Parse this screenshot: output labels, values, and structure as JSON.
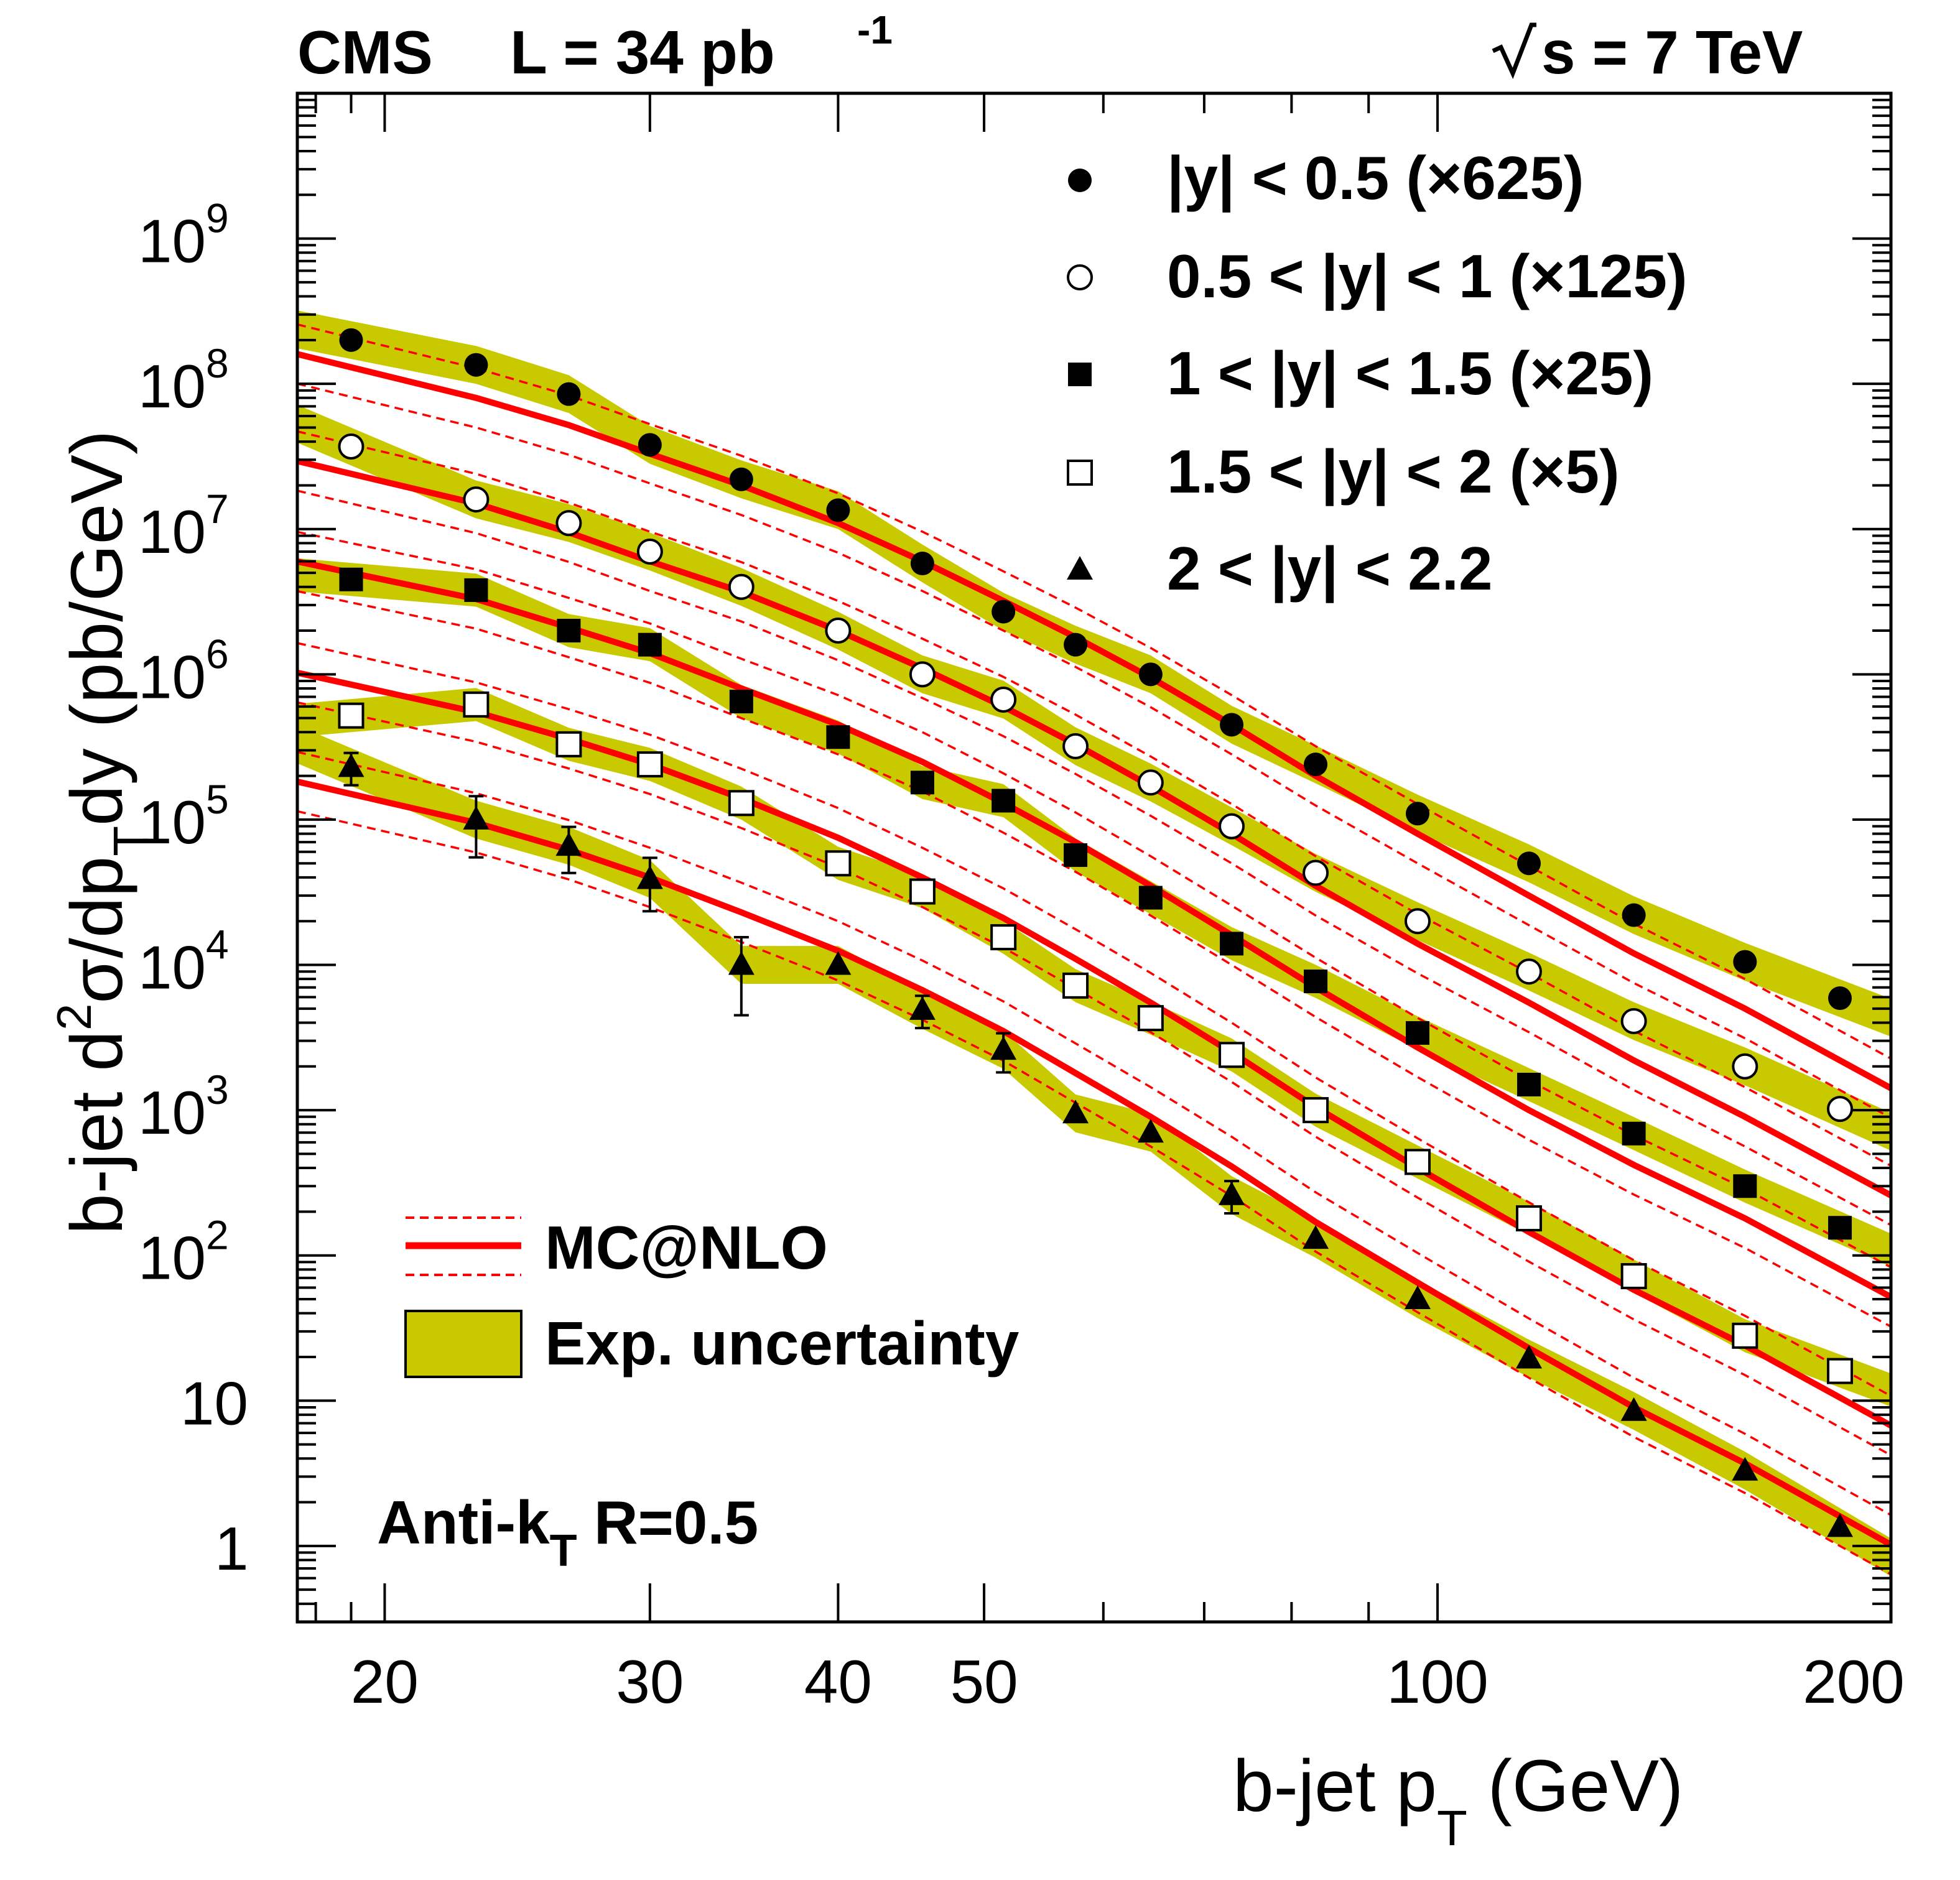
{
  "header": {
    "experiment": "CMS",
    "lumi_label": "L = 34 pb",
    "lumi_sup": "-1",
    "energy_label": "s = 7 TeV"
  },
  "annotation": {
    "algo_main": "Anti-k",
    "algo_sub": "T",
    "algo_rest": " R=0.5"
  },
  "legend_bottom": {
    "mc_label": "MC@NLO",
    "band_label": "Exp. uncertainty"
  },
  "chart_data": {
    "type": "scatter",
    "title": "CMS  L = 34 pb-1   sqrt(s) = 7 TeV",
    "xlabel": "b-jet pT (GeV)",
    "ylabel": "b-jet d2sigma/dpTdy (pb/GeV)",
    "xscale": "log",
    "yscale": "log",
    "xlim": [
      17.5,
      200
    ],
    "ylim": [
      0.3,
      10000000000.0
    ],
    "grid": false,
    "legend_position": "top-right",
    "x_ticks": [
      {
        "value": 20,
        "label": "20"
      },
      {
        "value": 30,
        "label": "30"
      },
      {
        "value": 40,
        "label": "40"
      },
      {
        "value": 50,
        "label": "50"
      },
      {
        "value": 100,
        "label": "100"
      },
      {
        "value": 200,
        "label": "200"
      }
    ],
    "y_ticks": [
      {
        "value": 1,
        "label": "1",
        "exp": ""
      },
      {
        "value": 10,
        "label": "10",
        "exp": ""
      },
      {
        "value": 100,
        "label": "10",
        "exp": "2"
      },
      {
        "value": 1000,
        "label": "10",
        "exp": "3"
      },
      {
        "value": 10000,
        "label": "10",
        "exp": "4"
      },
      {
        "value": 100000,
        "label": "10",
        "exp": "5"
      },
      {
        "value": 1000000,
        "label": "10",
        "exp": "6"
      },
      {
        "value": 10000000,
        "label": "10",
        "exp": "7"
      },
      {
        "value": 100000000,
        "label": "10",
        "exp": "8"
      },
      {
        "value": 1000000000,
        "label": "10",
        "exp": "9"
      }
    ],
    "x": [
      19,
      23,
      26.5,
      30,
      34.5,
      40,
      45.5,
      51.5,
      57.5,
      64.5,
      73,
      83,
      97,
      115,
      135,
      160,
      185
    ],
    "series": [
      {
        "name": "|y| < 0.5 (×625)",
        "marker": "filled-circle",
        "values": [
          200000000.0,
          135000000.0,
          85000000.0,
          38000000.0,
          22000000.0,
          13500000.0,
          5800000.0,
          2700000.0,
          1600000.0,
          1000000.0,
          450000.0,
          240000.0,
          110000.0,
          50000.0,
          22000.0,
          10500.0,
          5900.0
        ],
        "mc": [
          130000000.0,
          80000000.0,
          52000000.0,
          33000000.0,
          20000000.0,
          11000000.0,
          6000000.0,
          3200000.0,
          1800000.0,
          950000.0,
          450000.0,
          200000.0,
          80000.0,
          30000.0,
          12000.0,
          5000.0,
          2200.0
        ],
        "band_rel": 0.35
      },
      {
        "name": "0.5 < |y| < 1 (×125)",
        "marker": "open-circle",
        "values": [
          37000000.0,
          16000000.0,
          11000000.0,
          7000000.0,
          4000000.0,
          2000000.0,
          1000000.0,
          670000.0,
          320000.0,
          180000.0,
          90000.0,
          43000.0,
          20000.0,
          9000.0,
          4100.0,
          2000.0,
          1020.0
        ],
        "mc": [
          24000000.0,
          15000000.0,
          9500000.0,
          6000000.0,
          3700000.0,
          2000000.0,
          1100000.0,
          600000.0,
          330000.0,
          170000.0,
          80000.0,
          35000.0,
          14000.0,
          5500.0,
          2200.0,
          900.0,
          400.0
        ],
        "band_rel": 0.35
      },
      {
        "name": "1 < |y| < 1.5 (×25)",
        "marker": "filled-square",
        "values": [
          4500000.0,
          3800000.0,
          2000000.0,
          1600000.0,
          650000.0,
          370000.0,
          180000.0,
          135000.0,
          57000.0,
          29000.0,
          14000.0,
          7700.0,
          3400.0,
          1500.0,
          690.0,
          300.0,
          155.0
        ],
        "mc": [
          5000000.0,
          3300000.0,
          2100000.0,
          1400000.0,
          800000.0,
          450000.0,
          250000.0,
          130000.0,
          70000.0,
          35000.0,
          16000.0,
          7000.0,
          2700.0,
          1000.0,
          420.0,
          180.0,
          80.0
        ],
        "band_rel": 0.3
      },
      {
        "name": "1.5 < |y| < 2 (×5)",
        "marker": "open-square",
        "values": [
          520000.0,
          620000.0,
          330000.0,
          240000.0,
          130000.0,
          50000.0,
          32000.0,
          15500.0,
          7200.0,
          4300.0,
          2400.0,
          1000.0,
          440.0,
          180.0,
          72.0,
          28.0,
          16.0
        ],
        "mc": [
          850000.0,
          550000.0,
          360000.0,
          240000.0,
          140000.0,
          75000.0,
          40000.0,
          21000.0,
          11000.0,
          5500.0,
          2500.0,
          1050.0,
          400.0,
          145.0,
          58.0,
          24.0,
          10.5
        ],
        "band_rel": 0.3
      },
      {
        "name": "2 < |y| < 2.2",
        "marker": "filled-triangle",
        "values": [
          230000.0,
          100000.0,
          66000.0,
          39000.0,
          10000.0,
          10000.0,
          4900.0,
          2600.0,
          950.0,
          700.0,
          260.0,
          130.0,
          50.0,
          19.5,
          8.5,
          3.3,
          1.35
        ],
        "err": [
          0.25,
          0.45,
          0.35,
          0.4,
          0.55,
          0.1,
          0.25,
          0.3,
          0.1,
          0.1,
          0.25,
          0.1,
          0.1,
          0.1,
          0.1,
          0.1,
          0.1
        ],
        "mc": [
          150000.0,
          95000.0,
          62000.0,
          40000.0,
          23000.0,
          12500.0,
          6700.0,
          3500.0,
          1800.0,
          900.0,
          410.0,
          170.0,
          65.0,
          23.0,
          9.0,
          3.7,
          1.6
        ],
        "band_rel": 0.35
      }
    ],
    "mc_band_factor": 1.6,
    "colors": {
      "mc_line": "#ff0000",
      "band": "#c9c900",
      "band_stroke": "#000000",
      "marker": "#000000"
    }
  }
}
